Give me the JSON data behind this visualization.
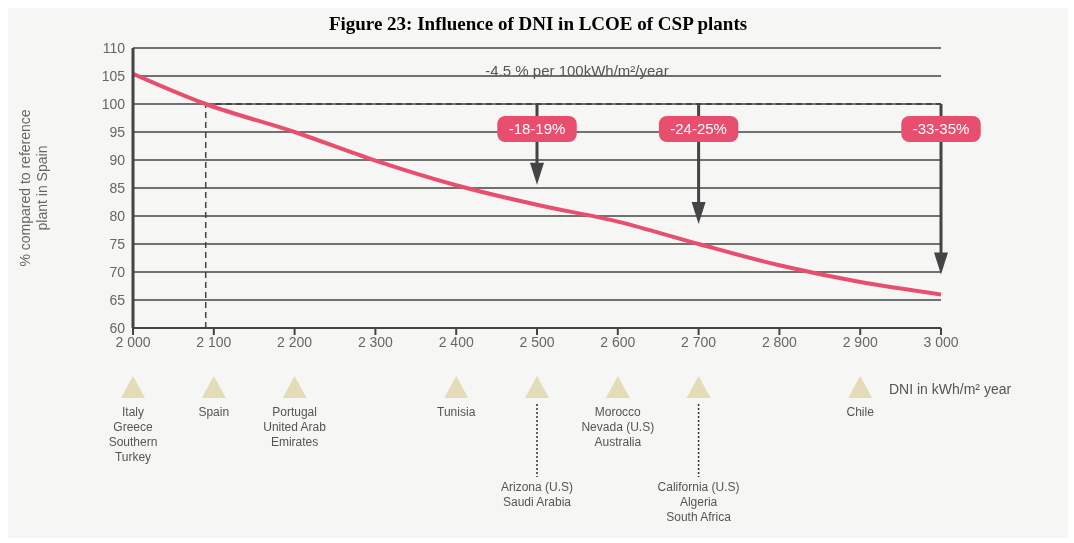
{
  "chart_data": {
    "type": "line",
    "title": "Figure 23: Influence of DNI in LCOE of CSP plants",
    "xlabel": "DNI in kWh/m² year",
    "ylabel": "% compared to reference plant in Spain",
    "series": [
      {
        "color": "#e84f6e",
        "x": [
          2000,
          2090,
          2200,
          2300,
          2400,
          2500,
          2600,
          2700,
          2800,
          2900,
          3000
        ],
        "values": [
          105.4,
          100,
          95,
          89.9,
          85.5,
          82,
          79,
          75,
          71.2,
          68.2,
          66
        ]
      }
    ],
    "xlim": [
      2000,
      3000
    ],
    "xticks": [
      {
        "value": 2000,
        "label": "2 000"
      },
      {
        "value": 2100,
        "label": "2 100"
      },
      {
        "value": 2200,
        "label": "2 200"
      },
      {
        "value": 2300,
        "label": "2 300"
      },
      {
        "value": 2400,
        "label": "2 400"
      },
      {
        "value": 2500,
        "label": "2 500"
      },
      {
        "value": 2600,
        "label": "2 600"
      },
      {
        "value": 2700,
        "label": "2 700"
      },
      {
        "value": 2800,
        "label": "2 800"
      },
      {
        "value": 2900,
        "label": "2 900"
      },
      {
        "value": 3000,
        "label": "3 000"
      }
    ],
    "ylim": [
      60,
      110
    ],
    "yticks": [
      60,
      65,
      70,
      75,
      80,
      85,
      90,
      95,
      100,
      105,
      110
    ],
    "grid": "y",
    "legend": false,
    "marker": "none",
    "line_style": "solid",
    "ref_lines": [
      {
        "axis": "x",
        "value": 2090,
        "line_style": "dashed",
        "color": "#444444"
      },
      {
        "axis": "y",
        "value": 100,
        "line_style": "dashed",
        "color": "#444444"
      }
    ],
    "annotations": [
      "-4.5 % per 100kWh/m²/year",
      "-18-19%",
      "-24-25%",
      "-33-35%",
      "Italy\nGreece\nSouthern\nTurkey",
      "Spain",
      "Portugal\nUnited Arab\nEmirates",
      "Tunisia",
      "Arizona (U.S)\nSaudi Arabia",
      "Morocco\nNevada (U.S)\nAustralia",
      "California (U.S)\nAlgeria\nSouth Africa",
      "Chile"
    ]
  }
}
